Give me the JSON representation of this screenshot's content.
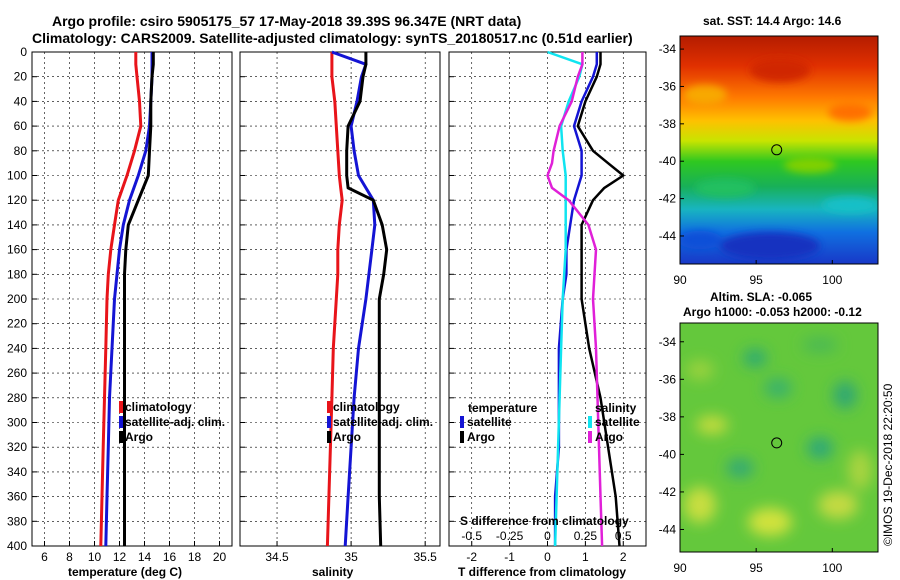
{
  "header": {
    "title_line1": "Argo profile: csiro 5905175_57 17-May-2018 39.39S 96.347E (NRT data)",
    "title_line2": "Climatology: CARS2009. Satellite-adjusted climatology: synTS_20180517.nc (0.51d earlier)"
  },
  "credit": "©IMOS 19-Dec-2018 22:20:50",
  "colors": {
    "climatology": "#e8141a",
    "satellite": "#1414d4",
    "argo": "#000000",
    "salinity_satellite": "#10e4f0",
    "salinity_argo": "#e020d8"
  },
  "depth_ticks": [
    "0",
    "20",
    "40",
    "60",
    "80",
    "100",
    "120",
    "140",
    "160",
    "180",
    "200",
    "220",
    "240",
    "260",
    "280",
    "300",
    "320",
    "340",
    "360",
    "380",
    "400"
  ],
  "chart_data": [
    {
      "type": "line",
      "name": "temperature-profile",
      "xlabel": "temperature (deg C)",
      "ylabel": "depth",
      "xlim": [
        5,
        21
      ],
      "ylim": [
        400,
        0
      ],
      "xticks": [
        "6",
        "8",
        "10",
        "12",
        "14",
        "16",
        "18",
        "20"
      ],
      "xtick_values": [
        6,
        8,
        10,
        12,
        14,
        16,
        18,
        20
      ],
      "grid": "dashed",
      "legend": [
        "climatology",
        "satellite-adj. clim.",
        "Argo"
      ],
      "depth": [
        0,
        10,
        20,
        40,
        60,
        80,
        100,
        120,
        140,
        160,
        180,
        200,
        240,
        280,
        320,
        360,
        400
      ],
      "series": [
        {
          "name": "climatology",
          "values": [
            13.3,
            13.3,
            13.4,
            13.6,
            13.7,
            13.2,
            12.6,
            11.9,
            11.6,
            11.3,
            11.1,
            11.0,
            10.9,
            10.8,
            10.7,
            10.6,
            10.5
          ]
        },
        {
          "name": "satellite-adj. clim.",
          "values": [
            14.6,
            14.6,
            14.6,
            14.5,
            14.4,
            14.1,
            13.5,
            12.8,
            12.3,
            12.0,
            11.8,
            11.6,
            11.4,
            11.2,
            11.1,
            11.0,
            10.9
          ]
        },
        {
          "name": "Argo",
          "values": [
            14.7,
            14.7,
            14.6,
            14.5,
            14.5,
            14.4,
            14.3,
            13.5,
            12.7,
            12.5,
            12.4,
            12.4,
            12.4,
            12.4,
            12.4,
            12.4,
            12.4
          ]
        }
      ]
    },
    {
      "type": "line",
      "name": "salinity-profile",
      "xlabel": "salinity",
      "ylabel": "depth",
      "xlim": [
        34.25,
        35.6
      ],
      "ylim": [
        400,
        0
      ],
      "xticks": [
        "34.5",
        "35",
        "35.5"
      ],
      "xtick_values": [
        34.5,
        35,
        35.5
      ],
      "grid": "dashed",
      "legend": [
        "climatology",
        "satellite-adj. clim.",
        "Argo"
      ],
      "depth": [
        0,
        10,
        20,
        40,
        60,
        80,
        100,
        110,
        120,
        140,
        160,
        180,
        200,
        240,
        280,
        320,
        360,
        400
      ],
      "series": [
        {
          "name": "climatology",
          "values": [
            34.87,
            34.87,
            34.87,
            34.89,
            34.9,
            34.91,
            34.92,
            34.93,
            34.94,
            34.92,
            34.91,
            34.91,
            34.9,
            34.88,
            34.87,
            34.86,
            34.85,
            34.84
          ]
        },
        {
          "name": "satellite-adj. clim.",
          "values": [
            34.87,
            35.1,
            35.07,
            35.04,
            35.0,
            35.02,
            35.05,
            35.1,
            35.15,
            35.16,
            35.14,
            35.12,
            35.1,
            35.05,
            35.02,
            35.0,
            34.98,
            34.96
          ]
        },
        {
          "name": "Argo",
          "values": [
            35.1,
            35.1,
            35.08,
            35.06,
            34.98,
            34.97,
            34.97,
            34.98,
            35.15,
            35.21,
            35.24,
            35.22,
            35.19,
            35.19,
            35.19,
            35.19,
            35.19,
            35.2
          ]
        }
      ]
    },
    {
      "type": "line",
      "name": "difference-from-climatology",
      "xlabel": "T difference from climatology",
      "xlabel_top": "S difference from climatology",
      "ylabel": "depth",
      "xlim": [
        -2.6,
        2.6
      ],
      "ylim": [
        400,
        0
      ],
      "xticks": [
        "-2",
        "-1",
        "0",
        "1",
        "2"
      ],
      "xtick_values": [
        -2,
        -1,
        0,
        1,
        2
      ],
      "xticks_secondary": [
        "-0.5",
        "-0.25",
        "0",
        "0.25",
        "0.5"
      ],
      "xtick_secondary_values": [
        -0.5,
        -0.25,
        0,
        0.25,
        0.5
      ],
      "s_scale_factor": 4,
      "grid": "dashed",
      "legend_temperature_title": "temperature",
      "legend_salinity_title": "salinity",
      "legend_temperature": [
        "satellite",
        "Argo"
      ],
      "legend_salinity": [
        "satellite",
        "Argo"
      ],
      "depth": [
        0,
        10,
        20,
        40,
        60,
        80,
        90,
        100,
        110,
        120,
        140,
        160,
        180,
        200,
        240,
        280,
        320,
        360,
        400
      ],
      "series": [
        {
          "name": "temperature satellite",
          "values": [
            1.3,
            1.3,
            1.2,
            0.9,
            0.7,
            0.9,
            0.9,
            0.9,
            0.8,
            0.7,
            0.6,
            0.5,
            0.5,
            0.4,
            0.3,
            0.3,
            0.3,
            0.2,
            0.2
          ]
        },
        {
          "name": "temperature Argo",
          "values": [
            1.4,
            1.4,
            1.3,
            1.0,
            0.8,
            1.2,
            1.6,
            2.0,
            1.5,
            1.2,
            0.9,
            0.9,
            0.9,
            0.9,
            1.1,
            1.4,
            1.6,
            1.8,
            1.9
          ]
        },
        {
          "name": "salinity satellite",
          "values": [
            0.0,
            0.23,
            0.21,
            0.14,
            0.09,
            0.1,
            0.11,
            0.12,
            0.12,
            0.12,
            0.12,
            0.12,
            0.11,
            0.1,
            0.09,
            0.08,
            0.07,
            0.06,
            0.05
          ]
        },
        {
          "name": "salinity Argo",
          "values": [
            0.23,
            0.23,
            0.2,
            0.16,
            0.08,
            0.04,
            0.03,
            0.0,
            0.03,
            0.14,
            0.27,
            0.32,
            0.31,
            0.3,
            0.32,
            0.33,
            0.34,
            0.35,
            0.36
          ]
        }
      ]
    },
    {
      "type": "heatmap",
      "name": "sst-map",
      "title": "sat. SST: 14.4 Argo: 14.6",
      "xlim": [
        90,
        103
      ],
      "ylim": [
        -45.5,
        -33.3
      ],
      "xticks": [
        "90",
        "95",
        "100"
      ],
      "xtick_values": [
        90,
        95,
        100
      ],
      "yticks": [
        "-34",
        "-36",
        "-38",
        "-40",
        "-42",
        "-44"
      ],
      "ytick_values": [
        -34,
        -36,
        -38,
        -40,
        -42,
        -44
      ],
      "marker": {
        "lon": 96.347,
        "lat": -39.39
      }
    },
    {
      "type": "heatmap",
      "name": "sla-map",
      "title": "Altim. SLA: -0.065",
      "subtitle": "Argo h1000: -0.053 h2000: -0.12",
      "xlim": [
        90,
        103
      ],
      "ylim": [
        -45.2,
        -33.0
      ],
      "xticks": [
        "90",
        "95",
        "100"
      ],
      "xtick_values": [
        90,
        95,
        100
      ],
      "yticks": [
        "-34",
        "-36",
        "-38",
        "-40",
        "-42",
        "-44"
      ],
      "ytick_values": [
        -34,
        -36,
        -38,
        -40,
        -42,
        -44
      ],
      "marker": {
        "lon": 96.347,
        "lat": -39.39
      }
    }
  ]
}
